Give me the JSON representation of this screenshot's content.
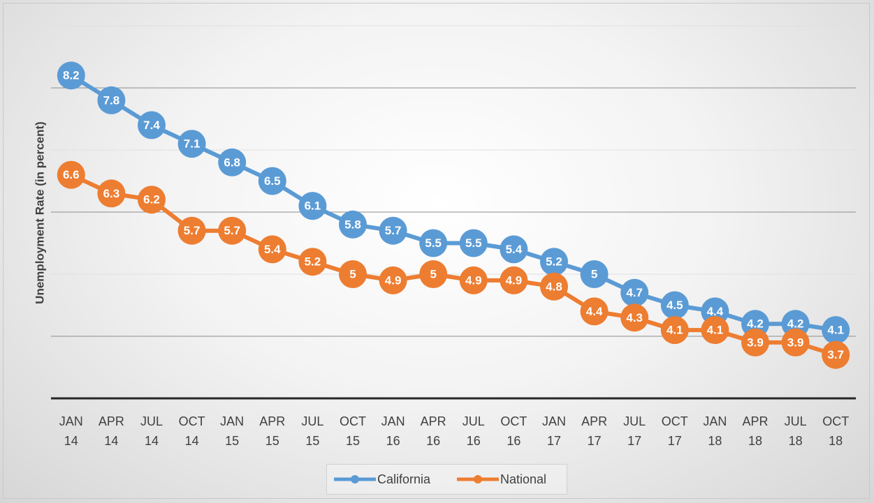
{
  "chart_data": {
    "type": "line",
    "y_label": "Unemployment Rate (in percent)",
    "categories": [
      "JAN 14",
      "APR 14",
      "JUL 14",
      "OCT 14",
      "JAN 15",
      "APR 15",
      "JUL 15",
      "OCT 15",
      "JAN 16",
      "APR 16",
      "JUL 16",
      "OCT 16",
      "JAN 17",
      "APR 17",
      "JUL 17",
      "OCT 17",
      "JAN 18",
      "APR 18",
      "JUL 18",
      "OCT 18"
    ],
    "series": [
      {
        "name": "California",
        "color": "#5b9bd5",
        "values": [
          8.2,
          7.8,
          7.4,
          7.1,
          6.8,
          6.5,
          6.1,
          5.8,
          5.7,
          5.5,
          5.5,
          5.4,
          5.2,
          5,
          4.7,
          4.5,
          4.4,
          4.2,
          4.2,
          4.1
        ]
      },
      {
        "name": "National",
        "color": "#ed7d31",
        "values": [
          6.6,
          6.3,
          6.2,
          5.7,
          5.7,
          5.4,
          5.2,
          5,
          4.9,
          5,
          4.9,
          4.9,
          4.8,
          4.4,
          4.3,
          4.1,
          4.1,
          3.9,
          3.9,
          3.7
        ]
      }
    ],
    "ylim": [
      3,
      9
    ],
    "yticks": [
      3,
      4,
      5,
      6,
      7,
      8,
      9
    ],
    "grid": true,
    "legend": "bottom"
  }
}
